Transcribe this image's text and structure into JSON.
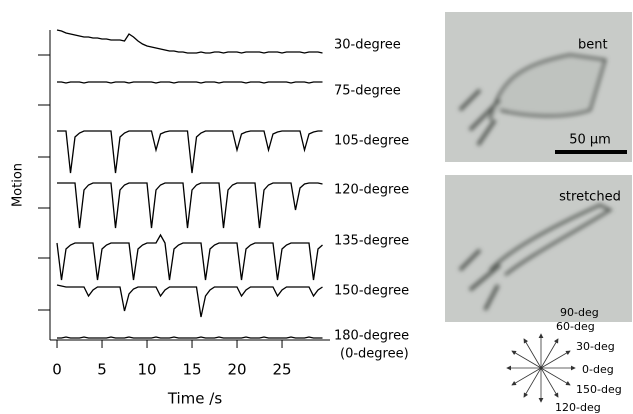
{
  "chart_data": {
    "type": "line",
    "x_label": "Time /s",
    "y_label": "Motion",
    "x": [
      0,
      0.5,
      1,
      1.5,
      2,
      2.5,
      3,
      3.5,
      4,
      4.5,
      5,
      5.5,
      6,
      6.5,
      7,
      7.5,
      8,
      8.5,
      9,
      9.5,
      10,
      10.5,
      11,
      11.5,
      12,
      12.5,
      13,
      13.5,
      14,
      14.5,
      15,
      15.5,
      16,
      16.5,
      17,
      17.5,
      18,
      18.5,
      19,
      19.5,
      20,
      20.5,
      21,
      21.5,
      22,
      22.5,
      23,
      23.5,
      24,
      24.5,
      25,
      25.5,
      26,
      26.5,
      27,
      27.5,
      28,
      28.5,
      29,
      29.5
    ],
    "xlim": [
      -0.78,
      30.33
    ],
    "xticks": [
      0,
      5,
      10,
      15,
      20,
      25
    ],
    "ylim": [
      0,
      31
    ],
    "yticks": [
      28.5,
      23.5,
      18.3,
      13.2,
      8.2,
      3.0
    ],
    "series": [
      {
        "name": "30-degree",
        "color": "#000000",
        "values": [
          31.0,
          30.9,
          30.7,
          30.6,
          30.5,
          30.4,
          30.3,
          30.3,
          30.2,
          30.2,
          30.1,
          30.1,
          30.0,
          30.0,
          30.0,
          29.9,
          30.6,
          30.3,
          29.9,
          29.6,
          29.4,
          29.3,
          29.2,
          29.1,
          29.0,
          28.9,
          28.9,
          28.8,
          28.8,
          28.7,
          28.7,
          28.7,
          28.8,
          28.7,
          28.7,
          28.8,
          28.8,
          28.7,
          28.8,
          28.8,
          28.8,
          28.7,
          28.8,
          28.8,
          28.8,
          28.8,
          28.7,
          28.8,
          28.8,
          28.8,
          28.7,
          28.8,
          28.8,
          28.8,
          28.8,
          28.7,
          28.8,
          28.8,
          28.8,
          28.7
        ]
      },
      {
        "name": "75-degree",
        "color": "#000000",
        "values": [
          25.8,
          25.8,
          25.7,
          25.8,
          25.8,
          25.8,
          25.7,
          25.8,
          25.8,
          25.8,
          25.8,
          25.8,
          25.7,
          25.8,
          25.8,
          25.8,
          25.7,
          25.8,
          25.8,
          25.8,
          25.8,
          25.8,
          25.7,
          25.8,
          25.8,
          25.8,
          25.7,
          25.8,
          25.8,
          25.8,
          25.8,
          25.8,
          25.7,
          25.8,
          25.8,
          25.8,
          25.7,
          25.8,
          25.8,
          25.8,
          25.8,
          25.8,
          25.7,
          25.8,
          25.8,
          25.8,
          25.7,
          25.8,
          25.8,
          25.8,
          25.8,
          25.8,
          25.7,
          25.8,
          25.8,
          25.8,
          25.7,
          25.8,
          25.8,
          25.8
        ]
      },
      {
        "name": "105-degree",
        "color": "#000000",
        "values": [
          20.9,
          20.9,
          20.9,
          16.7,
          20.3,
          20.7,
          20.9,
          20.9,
          20.9,
          20.9,
          20.9,
          20.9,
          20.9,
          16.7,
          20.3,
          20.7,
          20.9,
          20.9,
          20.9,
          20.9,
          20.9,
          20.9,
          19.0,
          20.6,
          20.8,
          20.9,
          20.9,
          20.9,
          20.9,
          20.9,
          16.7,
          20.3,
          20.7,
          20.9,
          20.9,
          20.9,
          20.9,
          20.9,
          20.9,
          20.9,
          19.0,
          20.6,
          20.8,
          20.9,
          20.9,
          20.9,
          20.9,
          19.0,
          20.6,
          20.8,
          20.9,
          20.9,
          20.9,
          20.9,
          20.9,
          19.0,
          20.6,
          20.8,
          20.9,
          20.9
        ]
      },
      {
        "name": "120-degree",
        "color": "#000000",
        "values": [
          15.7,
          15.7,
          15.7,
          15.7,
          15.7,
          11.2,
          15.0,
          15.5,
          15.7,
          15.7,
          15.7,
          15.7,
          15.7,
          11.2,
          15.0,
          15.5,
          15.7,
          15.7,
          15.7,
          15.7,
          15.7,
          11.2,
          15.0,
          15.5,
          15.7,
          15.7,
          15.7,
          15.7,
          15.7,
          11.2,
          15.0,
          15.5,
          15.7,
          15.7,
          15.7,
          15.7,
          15.7,
          11.2,
          15.0,
          15.5,
          15.7,
          15.7,
          15.7,
          15.7,
          15.7,
          11.2,
          15.0,
          15.5,
          15.7,
          15.7,
          15.7,
          15.7,
          15.7,
          13.0,
          15.2,
          15.6,
          15.7,
          15.7,
          15.7,
          15.6
        ]
      },
      {
        "name": "135-degree",
        "color": "#000000",
        "values": [
          9.7,
          6.0,
          9.1,
          9.5,
          9.7,
          9.7,
          9.7,
          9.7,
          9.7,
          6.0,
          9.1,
          9.5,
          9.7,
          9.7,
          9.7,
          9.7,
          9.7,
          6.0,
          9.1,
          9.5,
          9.7,
          9.7,
          9.7,
          10.5,
          9.7,
          6.0,
          9.1,
          9.5,
          9.7,
          9.7,
          9.7,
          9.7,
          9.7,
          6.0,
          9.1,
          9.5,
          9.7,
          9.7,
          9.7,
          9.7,
          9.7,
          6.0,
          9.1,
          9.5,
          9.7,
          9.7,
          9.7,
          9.7,
          9.7,
          6.0,
          9.1,
          9.5,
          9.7,
          9.7,
          9.7,
          9.7,
          9.7,
          6.0,
          9.1,
          9.5
        ]
      },
      {
        "name": "150-degree",
        "color": "#000000",
        "values": [
          5.5,
          5.4,
          5.3,
          5.3,
          5.3,
          5.3,
          5.3,
          4.4,
          5.0,
          5.3,
          5.3,
          5.3,
          5.3,
          5.3,
          5.3,
          2.9,
          4.6,
          5.1,
          5.3,
          5.3,
          5.3,
          5.3,
          5.3,
          4.4,
          5.0,
          5.3,
          5.3,
          5.3,
          5.3,
          5.3,
          5.3,
          5.3,
          2.3,
          4.4,
          5.0,
          5.3,
          5.3,
          5.3,
          5.3,
          5.3,
          5.3,
          4.4,
          5.0,
          5.3,
          5.3,
          5.3,
          5.3,
          5.3,
          5.3,
          4.4,
          5.0,
          5.3,
          5.3,
          5.3,
          5.3,
          5.3,
          5.3,
          4.4,
          5.0,
          5.3
        ]
      },
      {
        "name": "180-degree",
        "color": "#000000",
        "values": [
          0.2,
          0.2,
          0.3,
          0.2,
          0.2,
          0.2,
          0.3,
          0.2,
          0.2,
          0.2,
          0.2,
          0.2,
          0.3,
          0.2,
          0.2,
          0.2,
          0.3,
          0.2,
          0.2,
          0.2,
          0.2,
          0.2,
          0.3,
          0.2,
          0.2,
          0.2,
          0.3,
          0.2,
          0.2,
          0.2,
          0.2,
          0.2,
          0.3,
          0.2,
          0.2,
          0.2,
          0.3,
          0.2,
          0.2,
          0.2,
          0.2,
          0.2,
          0.3,
          0.2,
          0.2,
          0.2,
          0.3,
          0.2,
          0.2,
          0.2,
          0.2,
          0.2,
          0.3,
          0.2,
          0.2,
          0.2,
          0.3,
          0.2,
          0.2,
          0.2
        ]
      }
    ],
    "annotations": [
      "(0-degree)"
    ]
  },
  "images": {
    "top_label": "bent",
    "bottom_label": "stretched",
    "scale_bar": "50 µm"
  },
  "directions": [
    "90-deg",
    "60-deg",
    "30-deg",
    "0-deg",
    "150-deg",
    "120-deg"
  ]
}
